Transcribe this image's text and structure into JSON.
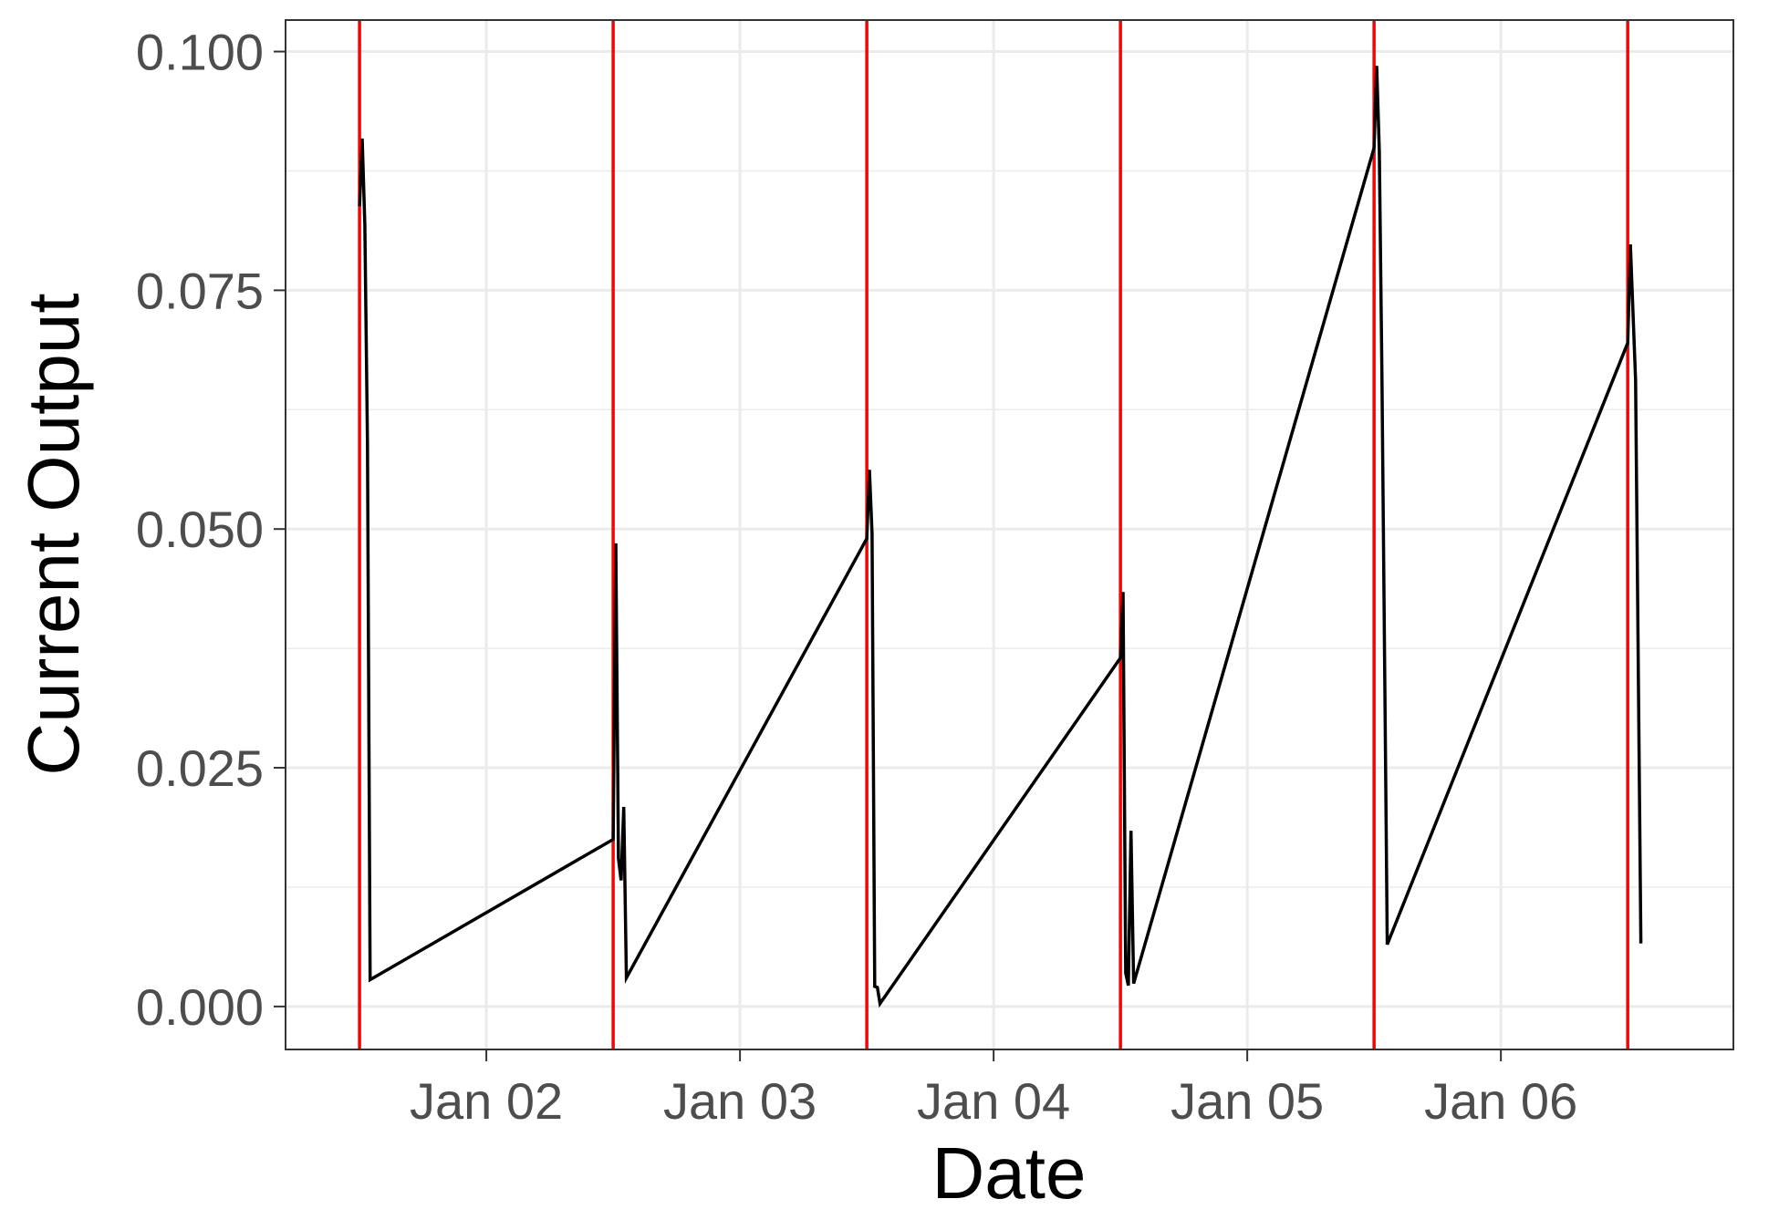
{
  "chart_data": {
    "type": "line",
    "xlabel": "Date",
    "ylabel": "Current Output",
    "xlim": [
      "2024-01-01T05:00",
      "2024-01-06T22:00"
    ],
    "ylim": [
      -0.0045,
      0.1033
    ],
    "x_ticks": [
      "2024-01-02",
      "2024-01-03",
      "2024-01-04",
      "2024-01-05",
      "2024-01-06"
    ],
    "x_tick_labels": [
      "Jan 02",
      "Jan 03",
      "Jan 04",
      "Jan 05",
      "Jan 06"
    ],
    "y_ticks": [
      0.0,
      0.025,
      0.05,
      0.075,
      0.1
    ],
    "y_tick_labels": [
      "0.000",
      "0.025",
      "0.050",
      "0.075",
      "0.100"
    ],
    "grid": true,
    "series": [
      {
        "color": "#000000",
        "points": [
          {
            "x": "2024-01-01T12:00",
            "y": 0.0838
          },
          {
            "x": "2024-01-01T12:15",
            "y": 0.0909
          },
          {
            "x": "2024-01-01T12:30",
            "y": 0.0819
          },
          {
            "x": "2024-01-01T12:45",
            "y": 0.0589
          },
          {
            "x": "2024-01-01T13:00",
            "y": 0.0028
          },
          {
            "x": "2024-01-02T12:00",
            "y": 0.0175
          },
          {
            "x": "2024-01-02T12:15",
            "y": 0.0485
          },
          {
            "x": "2024-01-02T12:30",
            "y": 0.0155
          },
          {
            "x": "2024-01-02T12:45",
            "y": 0.0132
          },
          {
            "x": "2024-01-02T13:00",
            "y": 0.0209
          },
          {
            "x": "2024-01-02T13:15",
            "y": 0.003
          },
          {
            "x": "2024-01-03T12:00",
            "y": 0.049
          },
          {
            "x": "2024-01-03T12:15",
            "y": 0.0562
          },
          {
            "x": "2024-01-03T12:30",
            "y": 0.0495
          },
          {
            "x": "2024-01-03T12:45",
            "y": 0.0021
          },
          {
            "x": "2024-01-03T13:00",
            "y": 0.002
          },
          {
            "x": "2024-01-03T13:15",
            "y": 0.0003
          },
          {
            "x": "2024-01-04T12:00",
            "y": 0.0365
          },
          {
            "x": "2024-01-04T12:15",
            "y": 0.0434
          },
          {
            "x": "2024-01-04T12:30",
            "y": 0.0035
          },
          {
            "x": "2024-01-04T12:45",
            "y": 0.0022
          },
          {
            "x": "2024-01-04T13:00",
            "y": 0.0184
          },
          {
            "x": "2024-01-04T13:15",
            "y": 0.0024
          },
          {
            "x": "2024-01-05T12:00",
            "y": 0.0899
          },
          {
            "x": "2024-01-05T12:15",
            "y": 0.0985
          },
          {
            "x": "2024-01-05T12:30",
            "y": 0.0896
          },
          {
            "x": "2024-01-05T12:45",
            "y": 0.0658
          },
          {
            "x": "2024-01-05T13:15",
            "y": 0.0065
          },
          {
            "x": "2024-01-06T12:00",
            "y": 0.0695
          },
          {
            "x": "2024-01-06T12:15",
            "y": 0.0798
          },
          {
            "x": "2024-01-06T12:45",
            "y": 0.0656
          },
          {
            "x": "2024-01-06T13:15",
            "y": 0.0066
          }
        ]
      }
    ],
    "vlines": {
      "color": "#ff0000",
      "x": [
        "2024-01-01T12:00",
        "2024-01-02T12:00",
        "2024-01-03T12:00",
        "2024-01-04T12:00",
        "2024-01-05T12:00",
        "2024-01-06T12:00"
      ]
    }
  }
}
